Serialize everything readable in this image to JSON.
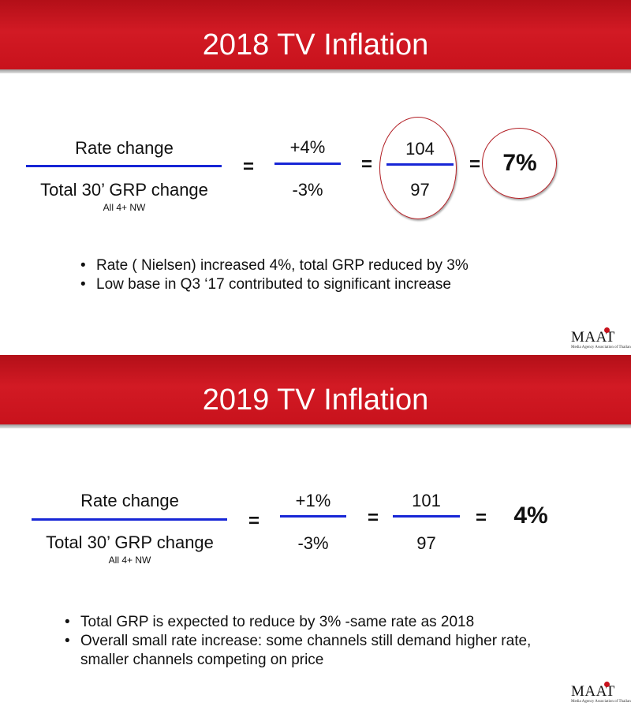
{
  "slides": [
    {
      "title": "2018 TV Inflation",
      "numerator_label": "Rate change",
      "denominator_label": "Total 30’ GRP change",
      "denominator_note": "All 4+ NW",
      "eq1": "=",
      "fraction1_top": "+4%",
      "fraction1_bottom": "-3%",
      "eq2": "=",
      "fraction2_top": "104",
      "fraction2_bottom": "97",
      "eq3": "=",
      "result": "7%",
      "bullet_marker": "•",
      "bullets": [
        "Rate ( Nielsen) increased 4%, total GRP reduced by 3%",
        "Low base in Q3 ‘17 contributed to significant increase"
      ],
      "logo_text": "MAAT",
      "logo_tagline": "Media Agency Association of Thailand"
    },
    {
      "title": "2019 TV Inflation",
      "numerator_label": "Rate change",
      "denominator_label": "Total 30’ GRP change",
      "denominator_note": "All 4+ NW",
      "eq1": "=",
      "fraction1_top": "+1%",
      "fraction1_bottom": "-3%",
      "eq2": "=",
      "fraction2_top": "101",
      "fraction2_bottom": "97",
      "eq3": "=",
      "result": "4%",
      "bullet_marker": "•",
      "bullets": [
        "Total GRP is expected to reduce by 3% -same rate as 2018",
        "Overall small rate increase: some channels still demand higher rate, smaller channels competing on price"
      ],
      "logo_text": "MAAT",
      "logo_tagline": "Media Agency Association of Thailand"
    }
  ],
  "colors": {
    "banner_red": "#c8121c",
    "fraction_bar_blue": "#1726d6",
    "highlight_ring_red": "#b21d23"
  }
}
